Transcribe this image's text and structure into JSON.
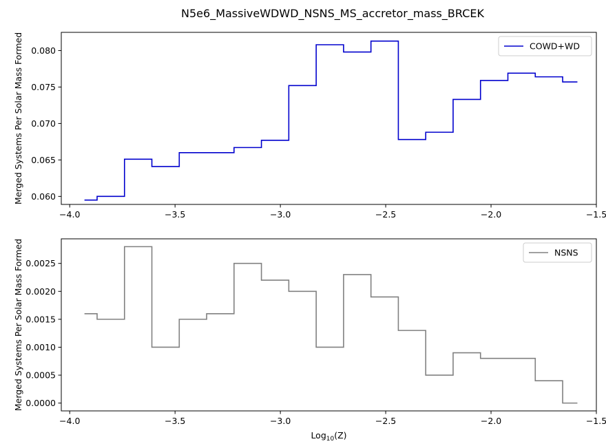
{
  "figure": {
    "title": "N5e6_MassiveWDWD_NSNS_MS_accretor_mass_BRCEK"
  },
  "chart_data": [
    {
      "type": "line",
      "style": "step",
      "xlabel": "",
      "ylabel": "Merged Systems Per Solar Mass Formed",
      "xlim": [
        -4.04,
        -1.5
      ],
      "ylim": [
        0.0589,
        0.0825
      ],
      "xticks": [
        -4.0,
        -3.5,
        -3.0,
        -2.5,
        -2.0,
        -1.5
      ],
      "xtick_labels": [
        "−4.0",
        "−3.5",
        "−3.0",
        "−2.5",
        "−2.0",
        "−1.5"
      ],
      "yticks": [
        0.06,
        0.065,
        0.07,
        0.075,
        0.08
      ],
      "ytick_labels": [
        "0.060",
        "0.065",
        "0.070",
        "0.075",
        "0.080"
      ],
      "legend_position": "top-right",
      "grid": false,
      "series": [
        {
          "name": "COWD+WD",
          "color": "#0000cd",
          "x": [
            -3.93,
            -3.87,
            -3.74,
            -3.61,
            -3.48,
            -3.35,
            -3.22,
            -3.09,
            -2.96,
            -2.83,
            -2.7,
            -2.57,
            -2.44,
            -2.31,
            -2.18,
            -2.05,
            -1.92,
            -1.79,
            -1.66,
            -1.59
          ],
          "y": [
            0.0595,
            0.06,
            0.0651,
            0.0641,
            0.066,
            0.066,
            0.0667,
            0.0677,
            0.0752,
            0.0808,
            0.0798,
            0.0813,
            0.0678,
            0.0688,
            0.0733,
            0.0759,
            0.0769,
            0.0764,
            0.0757,
            0.0757
          ]
        }
      ]
    },
    {
      "type": "line",
      "style": "step",
      "xlabel": "Log10(Z)",
      "ylabel": "Merged Systems Per Solar Mass Formed",
      "xlim": [
        -4.04,
        -1.5
      ],
      "ylim": [
        -0.00014,
        0.00294
      ],
      "xticks": [
        -4.0,
        -3.5,
        -3.0,
        -2.5,
        -2.0,
        -1.5
      ],
      "xtick_labels": [
        "−4.0",
        "−3.5",
        "−3.0",
        "−2.5",
        "−2.0",
        "−1.5"
      ],
      "yticks": [
        0.0,
        0.0005,
        0.001,
        0.0015,
        0.002,
        0.0025
      ],
      "ytick_labels": [
        "0.0000",
        "0.0005",
        "0.0010",
        "0.0015",
        "0.0020",
        "0.0025"
      ],
      "legend_position": "top-right",
      "grid": false,
      "series": [
        {
          "name": "NSNS",
          "color": "#808080",
          "x": [
            -3.93,
            -3.87,
            -3.74,
            -3.61,
            -3.48,
            -3.35,
            -3.22,
            -3.09,
            -2.96,
            -2.83,
            -2.7,
            -2.57,
            -2.44,
            -2.31,
            -2.18,
            -2.05,
            -1.92,
            -1.79,
            -1.66,
            -1.59
          ],
          "y": [
            0.0016,
            0.0015,
            0.0028,
            0.001,
            0.0015,
            0.0016,
            0.0025,
            0.0022,
            0.002,
            0.001,
            0.0023,
            0.0019,
            0.0013,
            0.0005,
            0.0009,
            0.0008,
            0.0008,
            0.0004,
            0.0,
            0.0
          ]
        }
      ]
    }
  ]
}
